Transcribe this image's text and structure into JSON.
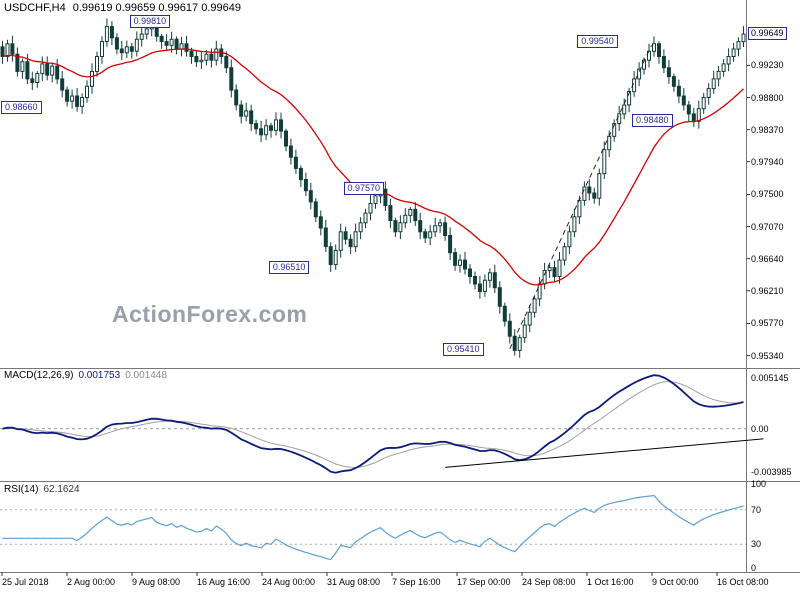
{
  "title": {
    "symbol": "USDCHF,H4",
    "ohlc": "0.99619 0.99659 0.99617 0.99649"
  },
  "watermark": "ActionForex.com",
  "colors": {
    "candle": "#123d3a",
    "ma": "#d40000",
    "macd": "#0d1b7d",
    "macd_signal": "#a0a0a0",
    "rsi": "#5c9fd6",
    "label_box": "#2a2aa0",
    "dashed": "#999999",
    "separator": "#777777",
    "trendline": "#222222",
    "watermark": "#98a0ac"
  },
  "price_axis": {
    "current": "0.99649",
    "ticks": [
      "0.99230",
      "0.98800",
      "0.98370",
      "0.97940",
      "0.97500",
      "0.97070",
      "0.96640",
      "0.96210",
      "0.95770",
      "0.95340"
    ]
  },
  "macd_panel": {
    "label": "MACD(12,26,9)",
    "value1": "0.001753",
    "value2": "0.001448",
    "axis": [
      "0.005145",
      "0.00",
      "-0.003985"
    ]
  },
  "rsi_panel": {
    "label": "RSI(14)",
    "value": "62.1624",
    "axis": [
      "100",
      "70",
      "30",
      "0"
    ]
  },
  "x_axis": {
    "labels": [
      "25 Jul 2018",
      "2 Aug 00:00",
      "9 Aug 08:00",
      "16 Aug 16:00",
      "24 Aug 00:00",
      "31 Aug 08:00",
      "7 Sep 16:00",
      "17 Sep 00:00",
      "24 Sep 08:00",
      "1 Oct 16:00",
      "9 Oct 00:00",
      "16 Oct 08:00"
    ]
  },
  "chart_data": {
    "type": "candlestick",
    "symbol": "USDCHF",
    "timeframe": "H4",
    "title": "USDCHF,H4",
    "ohlc_display": {
      "open": "0.99619",
      "high": "0.99659",
      "low": "0.99617",
      "close": "0.99649"
    },
    "ylim": [
      0.952,
      1.0
    ],
    "closes": [
      0.9935,
      0.9952,
      0.9938,
      0.9915,
      0.9928,
      0.9905,
      0.99,
      0.9912,
      0.9925,
      0.991,
      0.9922,
      0.9905,
      0.989,
      0.9875,
      0.9882,
      0.9868,
      0.988,
      0.9895,
      0.9915,
      0.9935,
      0.9955,
      0.9975,
      0.996,
      0.9945,
      0.994,
      0.9948,
      0.9942,
      0.9958,
      0.9965,
      0.9972,
      0.9978,
      0.9962,
      0.9955,
      0.995,
      0.9958,
      0.9945,
      0.9952,
      0.9942,
      0.9935,
      0.9928,
      0.993,
      0.9938,
      0.993,
      0.9945,
      0.9935,
      0.992,
      0.989,
      0.987,
      0.9855,
      0.9862,
      0.9845,
      0.9838,
      0.983,
      0.9842,
      0.9836,
      0.985,
      0.9835,
      0.9815,
      0.98,
      0.9785,
      0.977,
      0.9755,
      0.974,
      0.972,
      0.9705,
      0.968,
      0.9656,
      0.9675,
      0.97,
      0.969,
      0.968,
      0.97,
      0.9712,
      0.9725,
      0.9738,
      0.9748,
      0.9757,
      0.9735,
      0.9715,
      0.97,
      0.9712,
      0.9722,
      0.973,
      0.9715,
      0.97,
      0.9692,
      0.97,
      0.9708,
      0.9712,
      0.9695,
      0.9672,
      0.9655,
      0.9662,
      0.965,
      0.964,
      0.963,
      0.962,
      0.9635,
      0.9645,
      0.9625,
      0.96,
      0.958,
      0.956,
      0.9541,
      0.9558,
      0.9575,
      0.9592,
      0.961,
      0.963,
      0.9648,
      0.9652,
      0.964,
      0.9662,
      0.968,
      0.97,
      0.972,
      0.9742,
      0.976,
      0.9752,
      0.9745,
      0.9778,
      0.981,
      0.9828,
      0.9845,
      0.9858,
      0.987,
      0.9888,
      0.9905,
      0.9918,
      0.993,
      0.9942,
      0.9952,
      0.9935,
      0.992,
      0.9908,
      0.9895,
      0.9882,
      0.987,
      0.9858,
      0.9848,
      0.9865,
      0.988,
      0.9892,
      0.9905,
      0.9915,
      0.9925,
      0.9935,
      0.9945,
      0.9955,
      0.9965
    ],
    "annotations": [
      {
        "text": "0.99810",
        "bar": 31,
        "price": 0.9981
      },
      {
        "text": "0.99540",
        "bar": 121,
        "price": 0.9954
      },
      {
        "text": "0.98660",
        "bar": 3,
        "price": 0.9866
      },
      {
        "text": "0.98480",
        "bar": 132,
        "price": 0.9848
      },
      {
        "text": "0.97570",
        "bar": 74,
        "price": 0.9757
      },
      {
        "text": "0.96510",
        "bar": 59,
        "price": 0.9651
      },
      {
        "text": "0.95410",
        "bar": 94,
        "price": 0.9541
      }
    ],
    "price_trendline": {
      "x1_bar": 102,
      "price1": 0.9543,
      "x2_bar": 130.5,
      "price2": 0.995,
      "style": "dashed"
    },
    "macd_trendline": {
      "x1_bar": 89,
      "y1_frac": 0.9,
      "x2_bar": 153,
      "y2_frac": 0.63,
      "style": "solid"
    },
    "indicators": {
      "macd": "12,26,9",
      "macd_values": [
        0.001753,
        0.001448
      ],
      "rsi_period": 14,
      "rsi_value": 62.1624
    },
    "rsi_levels": [
      70,
      30
    ]
  }
}
